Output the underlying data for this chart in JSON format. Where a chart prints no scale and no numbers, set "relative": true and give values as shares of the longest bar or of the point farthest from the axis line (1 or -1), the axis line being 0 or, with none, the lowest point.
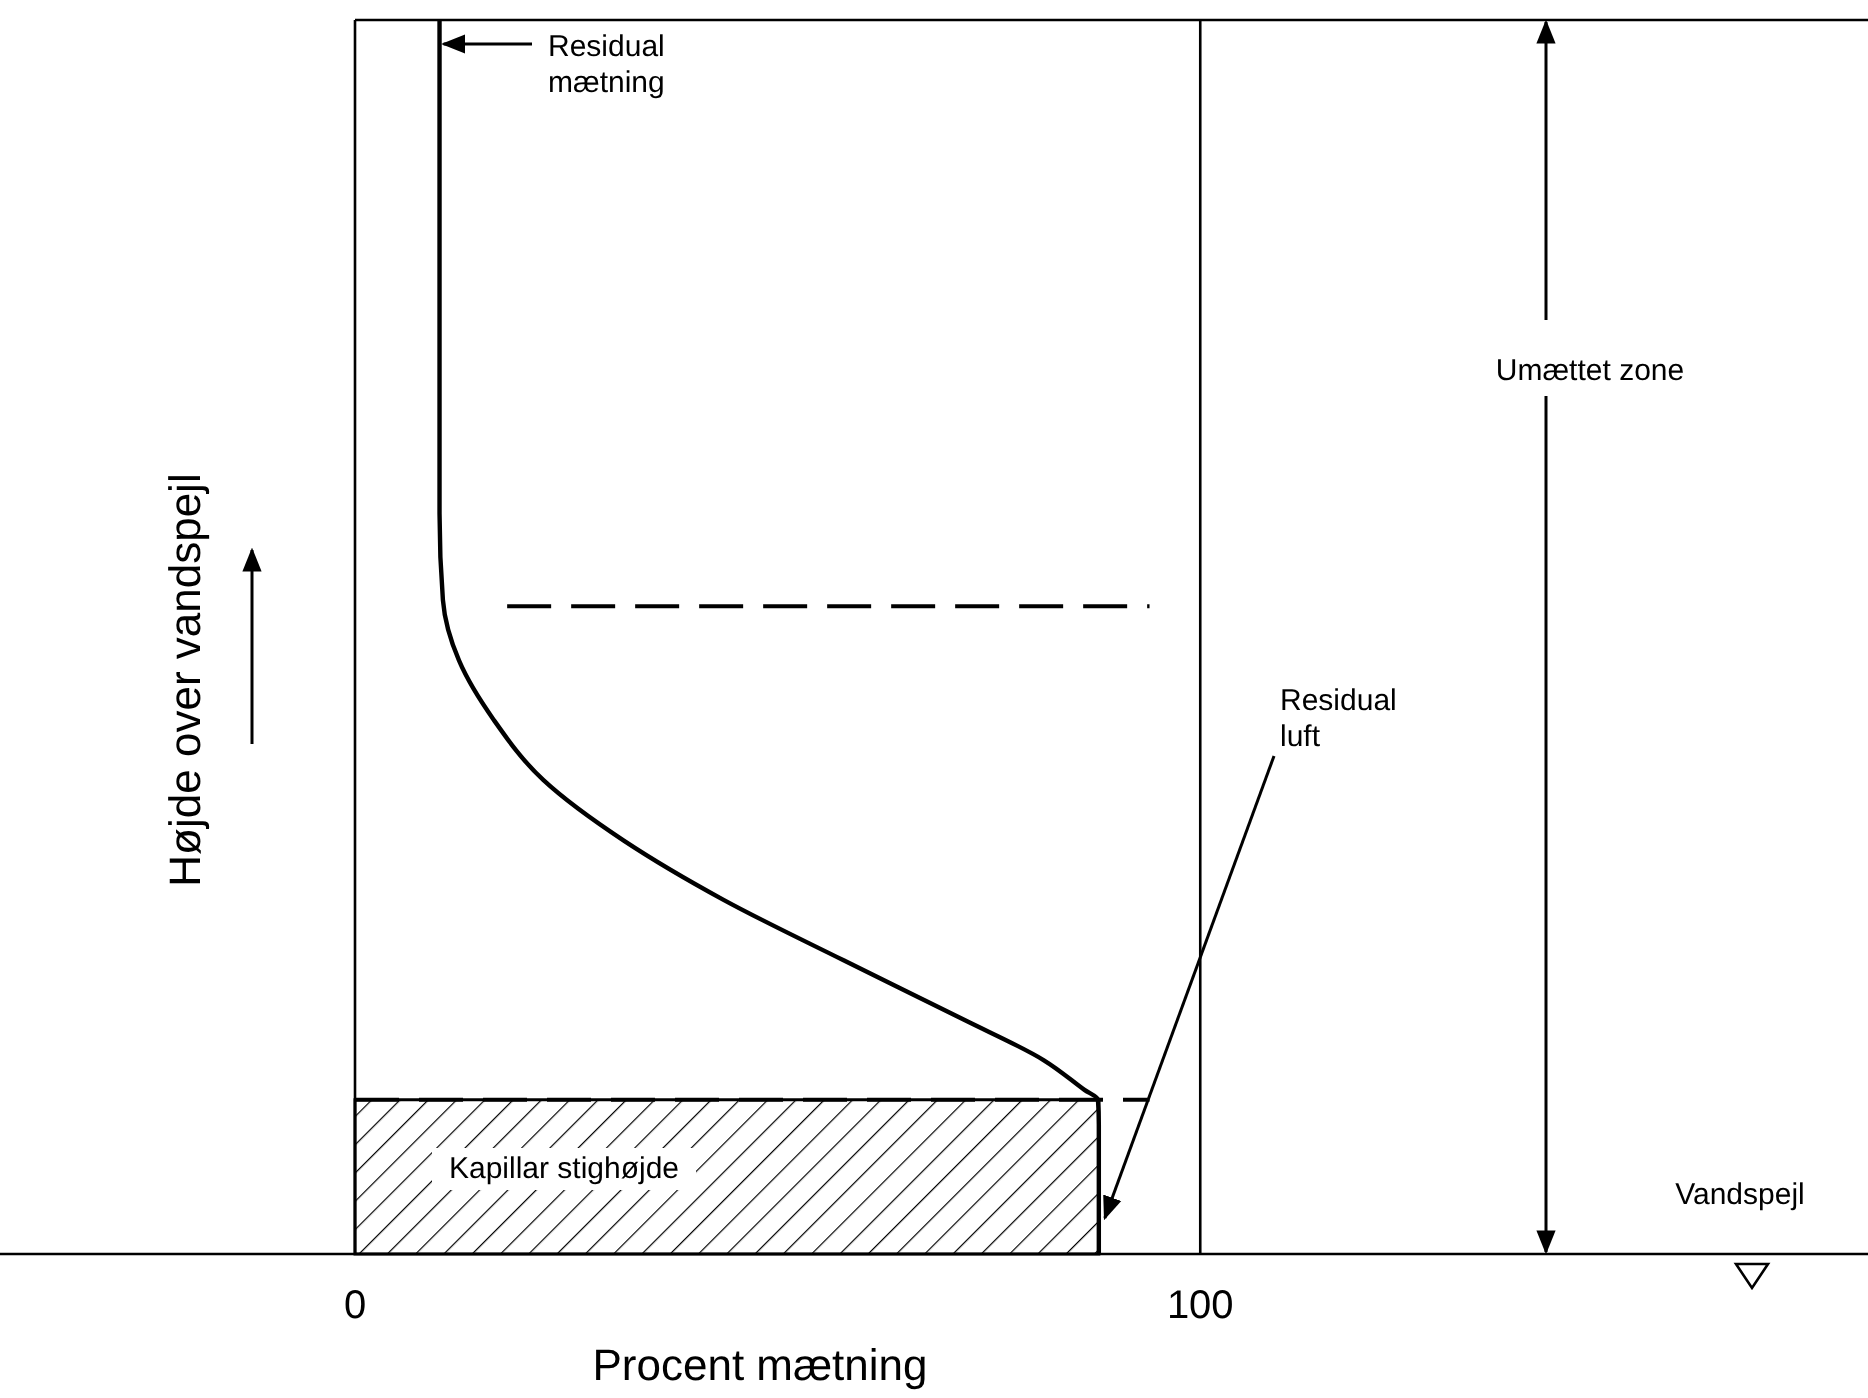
{
  "chart_data": {
    "type": "line",
    "relative": true,
    "xlabel": "Procent mætning",
    "ylabel": "Højde over vandspejl",
    "xlim": [
      -42,
      179
    ],
    "xticks": [
      0,
      100
    ],
    "series": [
      {
        "type": "area",
        "color": "#000000",
        "x": [
          0,
          88
        ],
        "values": [
          0.125,
          0.125
        ]
      },
      {
        "color": "#000000",
        "x": [
          10,
          10,
          10.4,
          12.3,
          16.4,
          22.3,
          31.8,
          43.6,
          57.8,
          72,
          81.5,
          86.3,
          87.9,
          88,
          88
        ],
        "values": [
          1,
          0.6,
          0.53,
          0.481,
          0.433,
          0.384,
          0.335,
          0.287,
          0.238,
          0.19,
          0.157,
          0.133,
          0.125,
          0.105,
          0
        ]
      },
      {
        "type": "line",
        "color": "#000000",
        "line_style": "dashed",
        "x": [
          18,
          94
        ],
        "values": [
          0.525,
          0.525
        ]
      },
      {
        "type": "line",
        "color": "#000000",
        "line_style": "dashed",
        "x": [
          0,
          94
        ],
        "values": [
          0.125,
          0.125
        ]
      }
    ],
    "ref_lines": [
      {
        "axis": "x",
        "value": 0
      },
      {
        "axis": "x",
        "value": 100
      },
      {
        "axis": "y",
        "value": 1
      },
      {
        "axis": "y",
        "value": 0
      }
    ],
    "annotations": [
      "Residual\nmætning",
      "Residual\nluft",
      "Kapillar stighøjde",
      "Umættet zone",
      "Vandspejl"
    ]
  }
}
